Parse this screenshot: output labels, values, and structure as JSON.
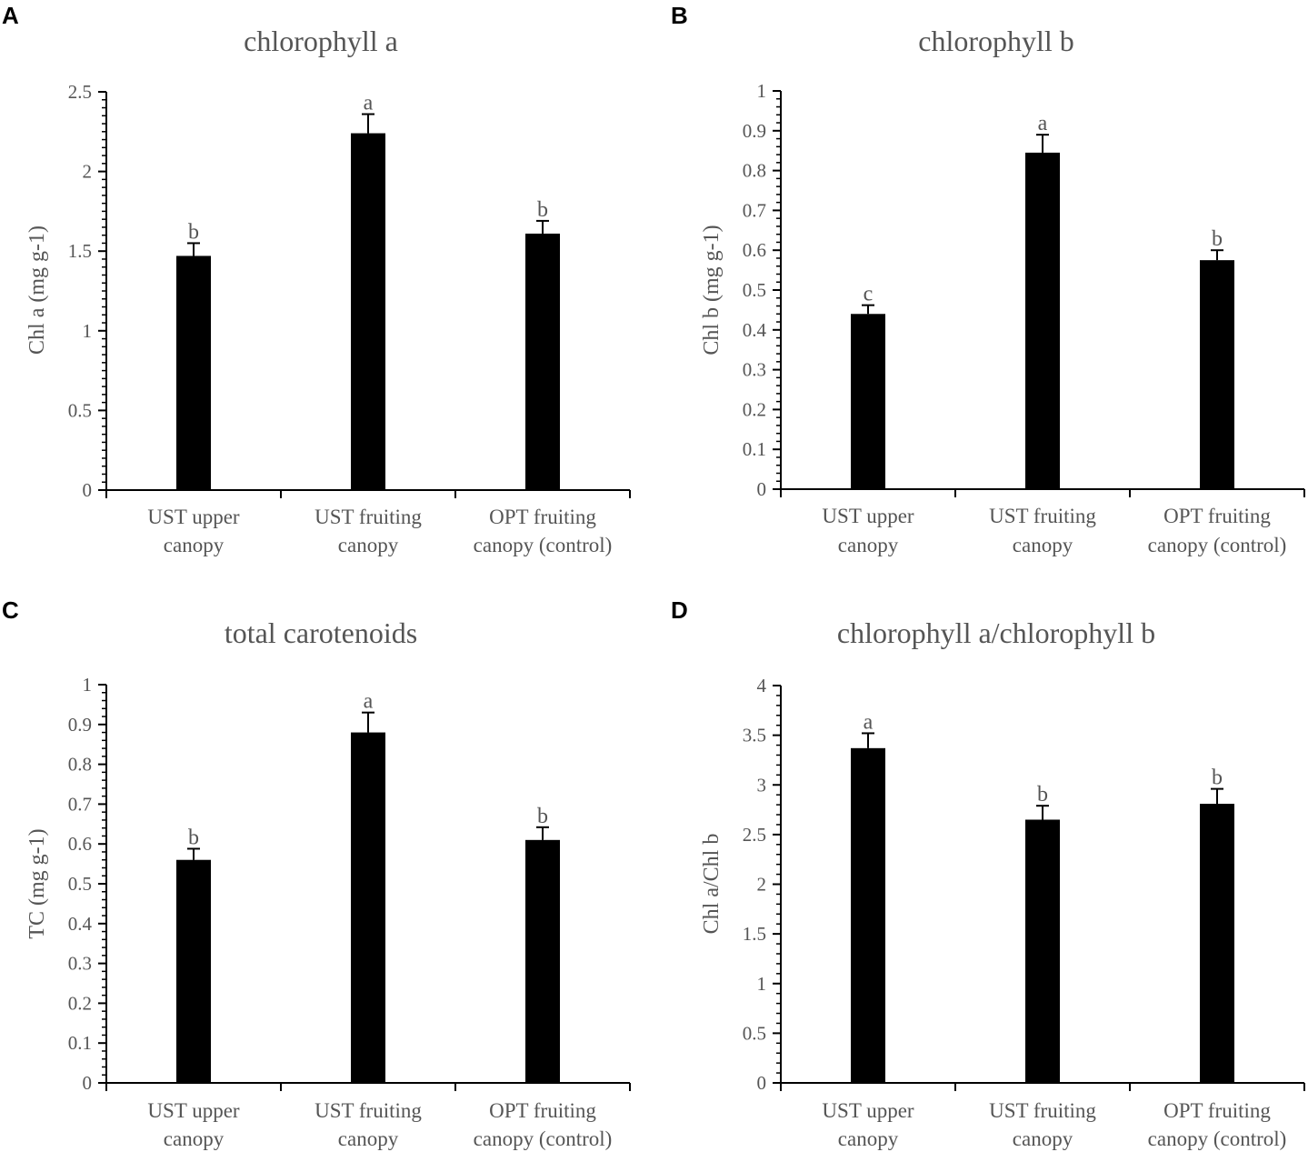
{
  "chart_data": [
    {
      "panel": "A",
      "type": "bar",
      "title": "chlorophyll a",
      "ylabel": "Chl a (mg g-1)",
      "xlabel": "",
      "ylim": [
        0,
        2.5
      ],
      "yticks": [
        "0",
        "0.5",
        "1",
        "1.5",
        "2",
        "2.5"
      ],
      "categories": [
        [
          "UST upper",
          "canopy"
        ],
        [
          "UST fruiting",
          "canopy"
        ],
        [
          "OPT fruiting",
          "canopy (control)"
        ]
      ],
      "values": [
        1.47,
        2.24,
        1.61
      ],
      "errors": [
        0.08,
        0.12,
        0.08
      ],
      "significance": [
        "b",
        "a",
        "b"
      ]
    },
    {
      "panel": "B",
      "type": "bar",
      "title": "chlorophyll b",
      "ylabel": "Chl b (mg g-1)",
      "xlabel": "",
      "ylim": [
        0,
        1
      ],
      "yticks": [
        "0",
        "0.1",
        "0.2",
        "0.3",
        "0.4",
        "0.5",
        "0.6",
        "0.7",
        "0.8",
        "0.9",
        "1"
      ],
      "categories": [
        [
          "UST upper",
          "canopy"
        ],
        [
          "UST fruiting",
          "canopy"
        ],
        [
          "OPT fruiting",
          "canopy (control)"
        ]
      ],
      "values": [
        0.44,
        0.845,
        0.575
      ],
      "errors": [
        0.022,
        0.045,
        0.025
      ],
      "significance": [
        "c",
        "a",
        "b"
      ]
    },
    {
      "panel": "C",
      "type": "bar",
      "title": "total carotenoids",
      "ylabel": "TC (mg g-1)",
      "xlabel": "",
      "ylim": [
        0,
        1
      ],
      "yticks": [
        "0",
        "0.1",
        "0.2",
        "0.3",
        "0.4",
        "0.5",
        "0.6",
        "0.7",
        "0.8",
        "0.9",
        "1"
      ],
      "categories": [
        [
          "UST upper",
          "canopy"
        ],
        [
          "UST fruiting",
          "canopy"
        ],
        [
          "OPT fruiting",
          "canopy (control)"
        ]
      ],
      "values": [
        0.56,
        0.88,
        0.61
      ],
      "errors": [
        0.028,
        0.05,
        0.032
      ],
      "significance": [
        "b",
        "a",
        "b"
      ]
    },
    {
      "panel": "D",
      "type": "bar",
      "title": "chlorophyll a/chlorophyll b",
      "ylabel": "Chl a/Chl b",
      "xlabel": "",
      "ylim": [
        0,
        4
      ],
      "yticks": [
        "0",
        "0.5",
        "1",
        "1.5",
        "2",
        "2.5",
        "3",
        "3.5",
        "4"
      ],
      "categories": [
        [
          "UST upper",
          "canopy"
        ],
        [
          "UST fruiting",
          "canopy"
        ],
        [
          "OPT fruiting",
          "canopy (control)"
        ]
      ],
      "values": [
        3.37,
        2.65,
        2.81
      ],
      "errors": [
        0.15,
        0.14,
        0.15
      ],
      "significance": [
        "a",
        "b",
        "b"
      ]
    }
  ],
  "colors": {
    "bar": "#000000",
    "axis": "#000000",
    "text": "#555555",
    "background": "#ffffff"
  }
}
